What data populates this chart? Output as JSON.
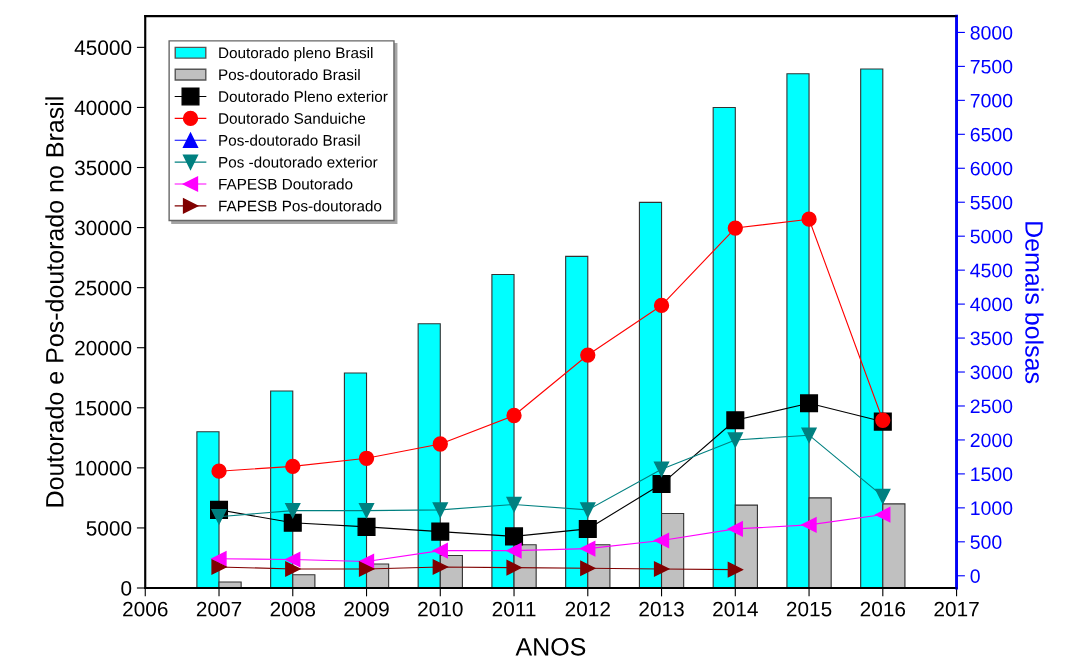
{
  "chart_data": {
    "type": "bar",
    "x": [
      2007,
      2008,
      2009,
      2010,
      2011,
      2012,
      2013,
      2014,
      2015,
      2016
    ],
    "xlabel": "ANOS",
    "ylabel": "Doutorado e Pos-doutorado no Brasil",
    "y2label": "Demais bolsas",
    "xlim": [
      2006,
      2017
    ],
    "xticks": [
      2006,
      2007,
      2008,
      2009,
      2010,
      2011,
      2012,
      2013,
      2014,
      2015,
      2016,
      2017
    ],
    "ylim": [
      0,
      47600
    ],
    "yticks": [
      0,
      5000,
      10000,
      15000,
      20000,
      25000,
      30000,
      35000,
      40000,
      45000
    ],
    "y2lim": [
      -180,
      8240
    ],
    "y2ticks": [
      0,
      500,
      1000,
      1500,
      2000,
      2500,
      3000,
      3500,
      4000,
      4500,
      5000,
      5500,
      6000,
      6500,
      7000,
      7500,
      8000
    ],
    "legend": "top left",
    "grid": false,
    "series": [
      {
        "name": "Doutorado pleno Brasil",
        "color": "#00ffff",
        "values": [
          13000,
          16400,
          17900,
          22000,
          26100,
          27600,
          32100,
          40000,
          42800,
          43200
        ]
      },
      {
        "name": "Pos-doutorado Brasil",
        "color": "#c0c0c0",
        "values": [
          500,
          1100,
          2000,
          2700,
          3600,
          3600,
          6200,
          6900,
          7500,
          7000
        ]
      },
      {
        "name": "Doutorado Pleno exterior",
        "type": "line",
        "axis": "y2",
        "marker": "square",
        "color": "#000000",
        "values": [
          970,
          780,
          720,
          650,
          580,
          690,
          1350,
          2290,
          2540,
          2270
        ]
      },
      {
        "name": "Doutorado Sanduiche",
        "type": "line",
        "axis": "y2",
        "marker": "circle",
        "color": "#ff0000",
        "values": [
          1540,
          1610,
          1730,
          1940,
          2360,
          3250,
          3980,
          5120,
          5250,
          2290
        ]
      },
      {
        "name": "Pos-doutorado Brasil",
        "type": "line",
        "axis": "y2",
        "marker": "triangle",
        "color": "#0000ff",
        "values": [
          null,
          null,
          null,
          null,
          null,
          null,
          null,
          null,
          null,
          null
        ]
      },
      {
        "name": "Pos -doutorado exterior",
        "type": "line",
        "axis": "y2",
        "marker": "triangle-down",
        "color": "#008080",
        "values": [
          870,
          960,
          960,
          970,
          1050,
          970,
          1570,
          2000,
          2070,
          1170
        ]
      },
      {
        "name": "FAPESB Doutorado",
        "type": "line",
        "axis": "y2",
        "marker": "triangle-left",
        "color": "#ff00ff",
        "values": [
          250,
          240,
          210,
          370,
          370,
          400,
          520,
          690,
          750,
          900
        ]
      },
      {
        "name": "FAPESB Pos-doutorado",
        "type": "line",
        "axis": "y2",
        "marker": "triangle-right",
        "color": "#800000",
        "values": [
          130,
          100,
          100,
          130,
          120,
          110,
          100,
          90,
          null,
          null
        ]
      }
    ]
  }
}
